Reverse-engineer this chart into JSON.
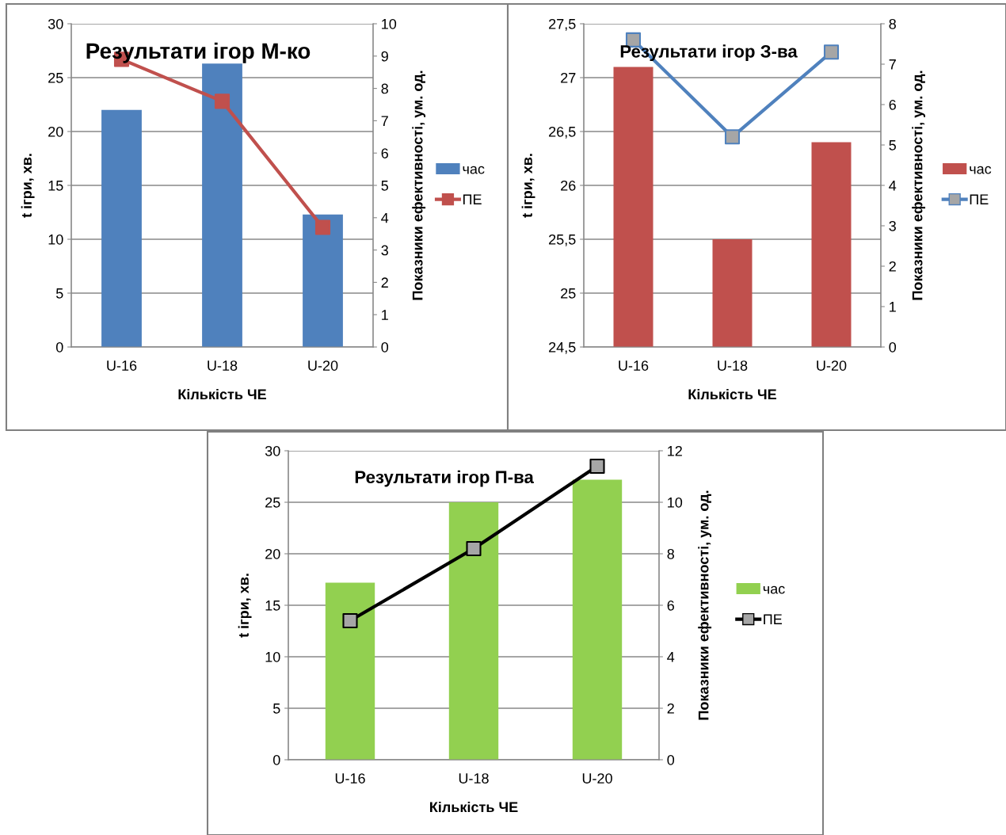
{
  "chart_data": [
    {
      "type": "bar",
      "title": "Результати ігор М-ко",
      "xlabel": "Кількість ЧЕ",
      "ylabel": "t ігри, хв.",
      "y2label": "Показники ефективності, ум. од.",
      "categories": [
        "U-16",
        "U-18",
        "U-20"
      ],
      "series": [
        {
          "name": "час",
          "color": "#4f81bd",
          "values": [
            22,
            26.3,
            12.3
          ]
        },
        {
          "name": "ПЕ",
          "type": "line",
          "axis": "y2",
          "color": "#c0504d",
          "colors": [
            "#c0504d",
            "#c0504d",
            "#c0504d"
          ],
          "marker": "square",
          "values": [
            8.9,
            7.6,
            3.7
          ]
        }
      ],
      "ylim": [
        0,
        30
      ],
      "yticks": [
        0,
        5,
        10,
        15,
        20,
        25,
        30
      ],
      "y2lim": [
        0,
        10
      ],
      "y2ticks": [
        0,
        1,
        2,
        3,
        4,
        5,
        6,
        7,
        8,
        9,
        10
      ],
      "grid": "y",
      "legend": "right"
    },
    {
      "type": "bar",
      "title": "Результати ігор З-ва",
      "xlabel": "Кількість ЧЕ",
      "ylabel": "t ігри, хв.",
      "y2label": "Показники ефективності, ум. од.",
      "categories": [
        "U-16",
        "U-18",
        "U-20"
      ],
      "series": [
        {
          "name": "час",
          "color": "#c0504d",
          "values": [
            27.1,
            25.5,
            26.4
          ]
        },
        {
          "name": "ПЕ",
          "type": "line",
          "axis": "y2",
          "color": "#4f81bd",
          "colors": [
            "#a6a6a6",
            "#a6a6a6",
            "#a6a6a6"
          ],
          "marker": "square",
          "values": [
            7.6,
            5.2,
            7.3
          ]
        }
      ],
      "ylim": [
        24.5,
        27.5
      ],
      "yticks": [
        {
          "value": 24.5,
          "label": "24,5"
        },
        25,
        {
          "value": 25.5,
          "label": "25,5"
        },
        26,
        {
          "value": 26.5,
          "label": "26,5"
        },
        27,
        {
          "value": 27.5,
          "label": "27,5"
        }
      ],
      "y2lim": [
        0,
        8
      ],
      "y2ticks": [
        0,
        1,
        2,
        3,
        4,
        5,
        6,
        7,
        8
      ],
      "grid": "y",
      "legend": "right"
    },
    {
      "type": "bar",
      "title": "Результати ігор П-ва",
      "xlabel": "Кількість ЧЕ",
      "ylabel": "t ігри, хв.",
      "y2label": "Показники ефективності, ум. од.",
      "categories": [
        "U-16",
        "U-18",
        "U-20"
      ],
      "series": [
        {
          "name": "час",
          "color": "#92d050",
          "values": [
            17.2,
            25.0,
            27.2
          ]
        },
        {
          "name": "ПЕ",
          "type": "line",
          "axis": "y2",
          "color": "#000000",
          "colors": [
            "#a6a6a6",
            "#a6a6a6",
            "#a6a6a6"
          ],
          "marker": "square",
          "values": [
            5.4,
            8.2,
            11.4
          ]
        }
      ],
      "ylim": [
        0,
        30
      ],
      "yticks": [
        0,
        5,
        10,
        15,
        20,
        25,
        30
      ],
      "y2lim": [
        0,
        12
      ],
      "y2ticks": [
        0,
        2,
        4,
        6,
        8,
        10,
        12
      ],
      "grid": "y",
      "legend": "right"
    }
  ]
}
